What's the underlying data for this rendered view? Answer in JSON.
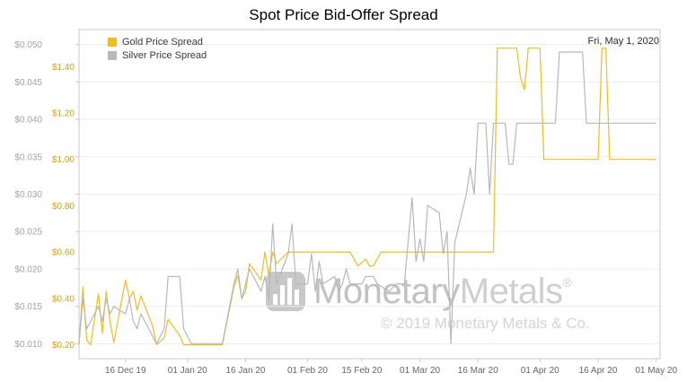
{
  "title": "Spot Price Bid-Offer Spread",
  "annotation_date": "Fri, May 1, 2020",
  "legend": [
    {
      "label": "Gold Price Spread",
      "color": "#edbd22"
    },
    {
      "label": "Silver Price Spread",
      "color": "#b8b8b8"
    }
  ],
  "watermark": {
    "brand_1": "Monetary",
    "brand_2": "Metals",
    "reg": "®",
    "copyright": "© 2019 Monetary Metals & Co."
  },
  "chart_data": {
    "type": "line",
    "title": "Spot Price Bid-Offer Spread",
    "legend_position": "top-left",
    "grid": true,
    "x_axis": {
      "range_days": [
        0,
        150
      ],
      "ticks": [
        {
          "day": 12,
          "label": "16 Dec 19"
        },
        {
          "day": 28,
          "label": "01 Jan 20"
        },
        {
          "day": 43,
          "label": "16 Jan 20"
        },
        {
          "day": 59,
          "label": "01 Feb 20"
        },
        {
          "day": 73,
          "label": "15 Feb 20"
        },
        {
          "day": 88,
          "label": "01 Mar 20"
        },
        {
          "day": 103,
          "label": "16 Mar 20"
        },
        {
          "day": 119,
          "label": "01 Apr 20"
        },
        {
          "day": 134,
          "label": "16 Apr 20"
        },
        {
          "day": 149,
          "label": "01 May 20"
        }
      ]
    },
    "y_axes": {
      "gold": {
        "ylim": [
          0.14,
          1.56
        ],
        "color": "#c9a227",
        "ticks": [
          {
            "value": 0.2,
            "label": "$0.20"
          },
          {
            "value": 0.4,
            "label": "$0.40"
          },
          {
            "value": 0.6,
            "label": "$0.60"
          },
          {
            "value": 0.8,
            "label": "$0.80"
          },
          {
            "value": 1.0,
            "label": "$1.00"
          },
          {
            "value": 1.2,
            "label": "$1.20"
          },
          {
            "value": 1.4,
            "label": "$1.40"
          }
        ]
      },
      "silver": {
        "ylim": [
          0.008,
          0.052
        ],
        "color": "#a3a3a3",
        "ticks": [
          {
            "value": 0.01,
            "label": "$0.010"
          },
          {
            "value": 0.015,
            "label": "$0.015"
          },
          {
            "value": 0.02,
            "label": "$0.020"
          },
          {
            "value": 0.025,
            "label": "$0.025"
          },
          {
            "value": 0.03,
            "label": "$0.030"
          },
          {
            "value": 0.035,
            "label": "$0.035"
          },
          {
            "value": 0.04,
            "label": "$0.040"
          },
          {
            "value": 0.045,
            "label": "$0.045"
          },
          {
            "value": 0.05,
            "label": "$0.050"
          }
        ]
      }
    },
    "series": [
      {
        "name": "Gold Price Spread",
        "axis": "gold",
        "color": "#edbd22",
        "points": [
          [
            0,
            0.2
          ],
          [
            1,
            0.45
          ],
          [
            2,
            0.22
          ],
          [
            3,
            0.2
          ],
          [
            5,
            0.42
          ],
          [
            6,
            0.25
          ],
          [
            7,
            0.43
          ],
          [
            8,
            0.3
          ],
          [
            9,
            0.21
          ],
          [
            12,
            0.48
          ],
          [
            13,
            0.4
          ],
          [
            14,
            0.43
          ],
          [
            15,
            0.35
          ],
          [
            16,
            0.41
          ],
          [
            19,
            0.28
          ],
          [
            20,
            0.2
          ],
          [
            22,
            0.23
          ],
          [
            23,
            0.31
          ],
          [
            26,
            0.24
          ],
          [
            27,
            0.2
          ],
          [
            37,
            0.2
          ],
          [
            40,
            0.45
          ],
          [
            41,
            0.5
          ],
          [
            42,
            0.4
          ],
          [
            43,
            0.43
          ],
          [
            44,
            0.55
          ],
          [
            47,
            0.48
          ],
          [
            48,
            0.6
          ],
          [
            49,
            0.5
          ],
          [
            50,
            0.6
          ],
          [
            51,
            0.55
          ],
          [
            54,
            0.6
          ],
          [
            70,
            0.6
          ],
          [
            71,
            0.57
          ],
          [
            72,
            0.54
          ],
          [
            74,
            0.57
          ],
          [
            75,
            0.54
          ],
          [
            76,
            0.54
          ],
          [
            78,
            0.6
          ],
          [
            107,
            0.6
          ],
          [
            108,
            1.48
          ],
          [
            113,
            1.48
          ],
          [
            114,
            1.35
          ],
          [
            115,
            1.3
          ],
          [
            116,
            1.48
          ],
          [
            119,
            1.48
          ],
          [
            120,
            1.0
          ],
          [
            134,
            1.0
          ],
          [
            135,
            1.48
          ],
          [
            136,
            1.48
          ],
          [
            137,
            1.0
          ],
          [
            149,
            1.0
          ]
        ]
      },
      {
        "name": "Silver Price Spread",
        "axis": "silver",
        "color": "#b8b8b8",
        "points": [
          [
            0,
            0.01
          ],
          [
            1,
            0.016
          ],
          [
            2,
            0.012
          ],
          [
            3,
            0.013
          ],
          [
            5,
            0.015
          ],
          [
            6,
            0.013
          ],
          [
            7,
            0.016
          ],
          [
            8,
            0.014
          ],
          [
            9,
            0.015
          ],
          [
            12,
            0.014
          ],
          [
            13,
            0.016
          ],
          [
            14,
            0.013
          ],
          [
            15,
            0.012
          ],
          [
            16,
            0.014
          ],
          [
            19,
            0.011
          ],
          [
            20,
            0.01
          ],
          [
            22,
            0.012
          ],
          [
            23,
            0.019
          ],
          [
            26,
            0.019
          ],
          [
            27,
            0.012
          ],
          [
            29,
            0.01
          ],
          [
            37,
            0.01
          ],
          [
            40,
            0.018
          ],
          [
            41,
            0.02
          ],
          [
            42,
            0.016
          ],
          [
            43,
            0.018
          ],
          [
            44,
            0.02
          ],
          [
            47,
            0.017
          ],
          [
            48,
            0.019
          ],
          [
            49,
            0.016
          ],
          [
            50,
            0.026
          ],
          [
            51,
            0.018
          ],
          [
            54,
            0.022
          ],
          [
            55,
            0.026
          ],
          [
            56,
            0.018
          ],
          [
            59,
            0.018
          ],
          [
            60,
            0.022
          ],
          [
            61,
            0.017
          ],
          [
            62,
            0.021
          ],
          [
            63,
            0.018
          ],
          [
            66,
            0.019
          ],
          [
            67,
            0.017
          ],
          [
            68,
            0.018
          ],
          [
            69,
            0.02
          ],
          [
            70,
            0.018
          ],
          [
            73,
            0.018
          ],
          [
            74,
            0.019
          ],
          [
            76,
            0.019
          ],
          [
            77,
            0.018
          ],
          [
            80,
            0.017
          ],
          [
            82,
            0.018
          ],
          [
            84,
            0.018
          ],
          [
            86,
            0.0295
          ],
          [
            87,
            0.021
          ],
          [
            88,
            0.024
          ],
          [
            89,
            0.021
          ],
          [
            90,
            0.0285
          ],
          [
            93,
            0.0275
          ],
          [
            94,
            0.022
          ],
          [
            95,
            0.025
          ],
          [
            96,
            0.01
          ],
          [
            97,
            0.0235
          ],
          [
            100,
            0.03
          ],
          [
            101,
            0.0335
          ],
          [
            102,
            0.03
          ],
          [
            103,
            0.0395
          ],
          [
            105,
            0.0395
          ],
          [
            106,
            0.03
          ],
          [
            107,
            0.0395
          ],
          [
            110,
            0.0395
          ],
          [
            111,
            0.034
          ],
          [
            112,
            0.034
          ],
          [
            113,
            0.0395
          ],
          [
            123,
            0.0395
          ],
          [
            124,
            0.049
          ],
          [
            130,
            0.049
          ],
          [
            131,
            0.0395
          ],
          [
            149,
            0.0395
          ]
        ]
      }
    ]
  }
}
